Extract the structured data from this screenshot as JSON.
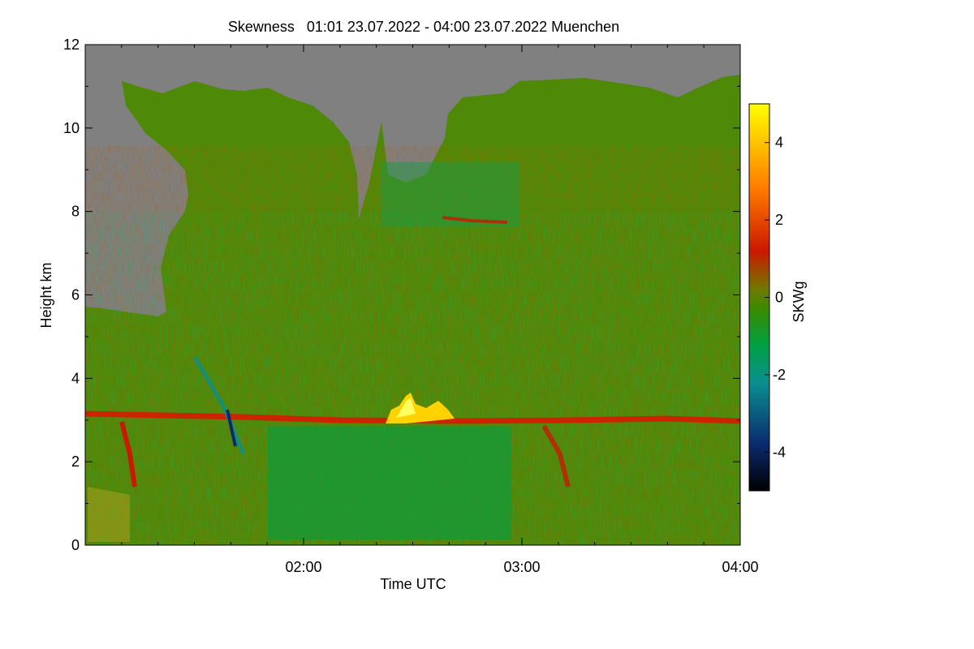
{
  "chart_data": {
    "type": "heatmap",
    "title": "Skewness   01:01 23.07.2022 - 04:00 23.07.2022 Muenchen",
    "xlabel": "Time UTC",
    "ylabel": "Height km",
    "colorbar_label": "SKWg",
    "x_range_hours": [
      1.0,
      4.0
    ],
    "x_ticks": [
      {
        "value": 2.0,
        "label": "02:00"
      },
      {
        "value": 3.0,
        "label": "03:00"
      },
      {
        "value": 4.0,
        "label": "04:00"
      }
    ],
    "ylim": [
      0,
      12
    ],
    "y_ticks": [
      {
        "value": 0,
        "label": "0"
      },
      {
        "value": 2,
        "label": "2"
      },
      {
        "value": 4,
        "label": "4"
      },
      {
        "value": 6,
        "label": "6"
      },
      {
        "value": 8,
        "label": "8"
      },
      {
        "value": 10,
        "label": "10"
      },
      {
        "value": 12,
        "label": "12"
      }
    ],
    "color_range": [
      -5,
      5
    ],
    "colorbar_ticks": [
      {
        "value": 4,
        "label": "4"
      },
      {
        "value": 2,
        "label": "2"
      },
      {
        "value": 0,
        "label": "0"
      },
      {
        "value": -2,
        "label": "-2"
      },
      {
        "value": -4,
        "label": "-4"
      }
    ],
    "colormap": [
      "#000000",
      "#0b2a6e",
      "#0a8f8f",
      "#00a040",
      "#3a8a00",
      "#6e7a00",
      "#cc1800",
      "#ff7a00",
      "#ffff00"
    ],
    "no_data_color": "#808080",
    "features": [
      {
        "name": "aerosol-layer-top",
        "height_km": 3.1,
        "value": 1.2
      },
      {
        "name": "upper-layer",
        "height_km": 7.6,
        "value": 1.0
      },
      {
        "name": "convective-plume",
        "time_h": 2.55,
        "height_km": 3.4,
        "value": 4.5
      }
    ]
  }
}
